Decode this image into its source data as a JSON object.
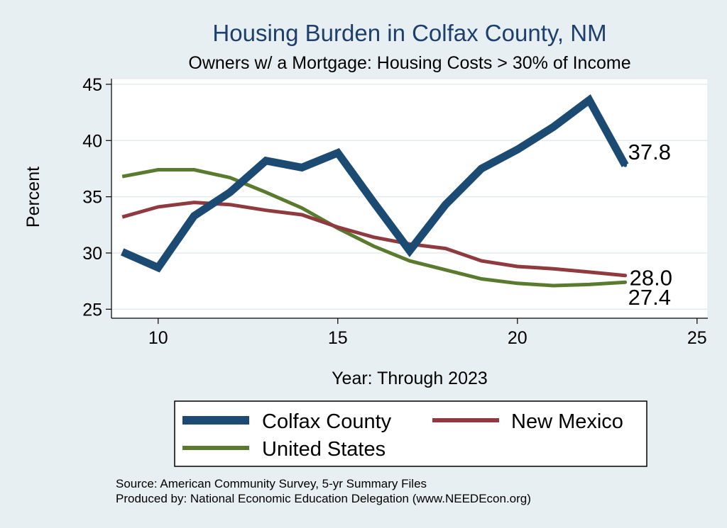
{
  "chart_data": {
    "type": "line",
    "title": "Housing Burden in Colfax County, NM",
    "subtitle": "Owners w/ a Mortgage: Housing Costs > 30% of Income",
    "xlabel": "Year: Through 2023",
    "ylabel": "Percent",
    "xlim": [
      8.7,
      25.3
    ],
    "ylim": [
      24.2,
      45.5
    ],
    "x_ticks": [
      10,
      15,
      20,
      25
    ],
    "y_ticks": [
      25,
      30,
      35,
      40,
      45
    ],
    "grid": true,
    "legend_position": "bottom",
    "series": [
      {
        "name": "Colfax County",
        "color": "#1b4a72",
        "x": [
          9,
          10,
          11,
          12,
          13,
          14,
          15,
          16,
          17,
          18,
          19,
          20,
          21,
          22,
          23
        ],
        "values": [
          30.1,
          28.7,
          33.3,
          35.4,
          38.2,
          37.6,
          38.9,
          34.5,
          30.2,
          34.3,
          37.5,
          39.2,
          41.2,
          43.6,
          37.8
        ],
        "end_label": "37.8"
      },
      {
        "name": "New Mexico",
        "color": "#8f3a3e",
        "x": [
          9,
          10,
          11,
          12,
          13,
          14,
          15,
          16,
          17,
          18,
          19,
          20,
          21,
          22,
          23
        ],
        "values": [
          33.2,
          34.1,
          34.5,
          34.3,
          33.8,
          33.4,
          32.3,
          31.4,
          30.8,
          30.4,
          29.3,
          28.8,
          28.6,
          28.3,
          28.0
        ],
        "end_label": "28.0"
      },
      {
        "name": "United States",
        "color": "#5a7a2e",
        "x": [
          9,
          10,
          11,
          12,
          13,
          14,
          15,
          16,
          17,
          18,
          19,
          20,
          21,
          22,
          23
        ],
        "values": [
          36.8,
          37.4,
          37.4,
          36.7,
          35.4,
          34.0,
          32.2,
          30.6,
          29.3,
          28.5,
          27.7,
          27.3,
          27.1,
          27.2,
          27.4
        ],
        "end_label": "27.4"
      }
    ],
    "notes": [
      "Source: American Community Survey, 5-yr Summary Files",
      "Produced by: National Economic Education Delegation (www.NEEDEcon.org)"
    ]
  }
}
